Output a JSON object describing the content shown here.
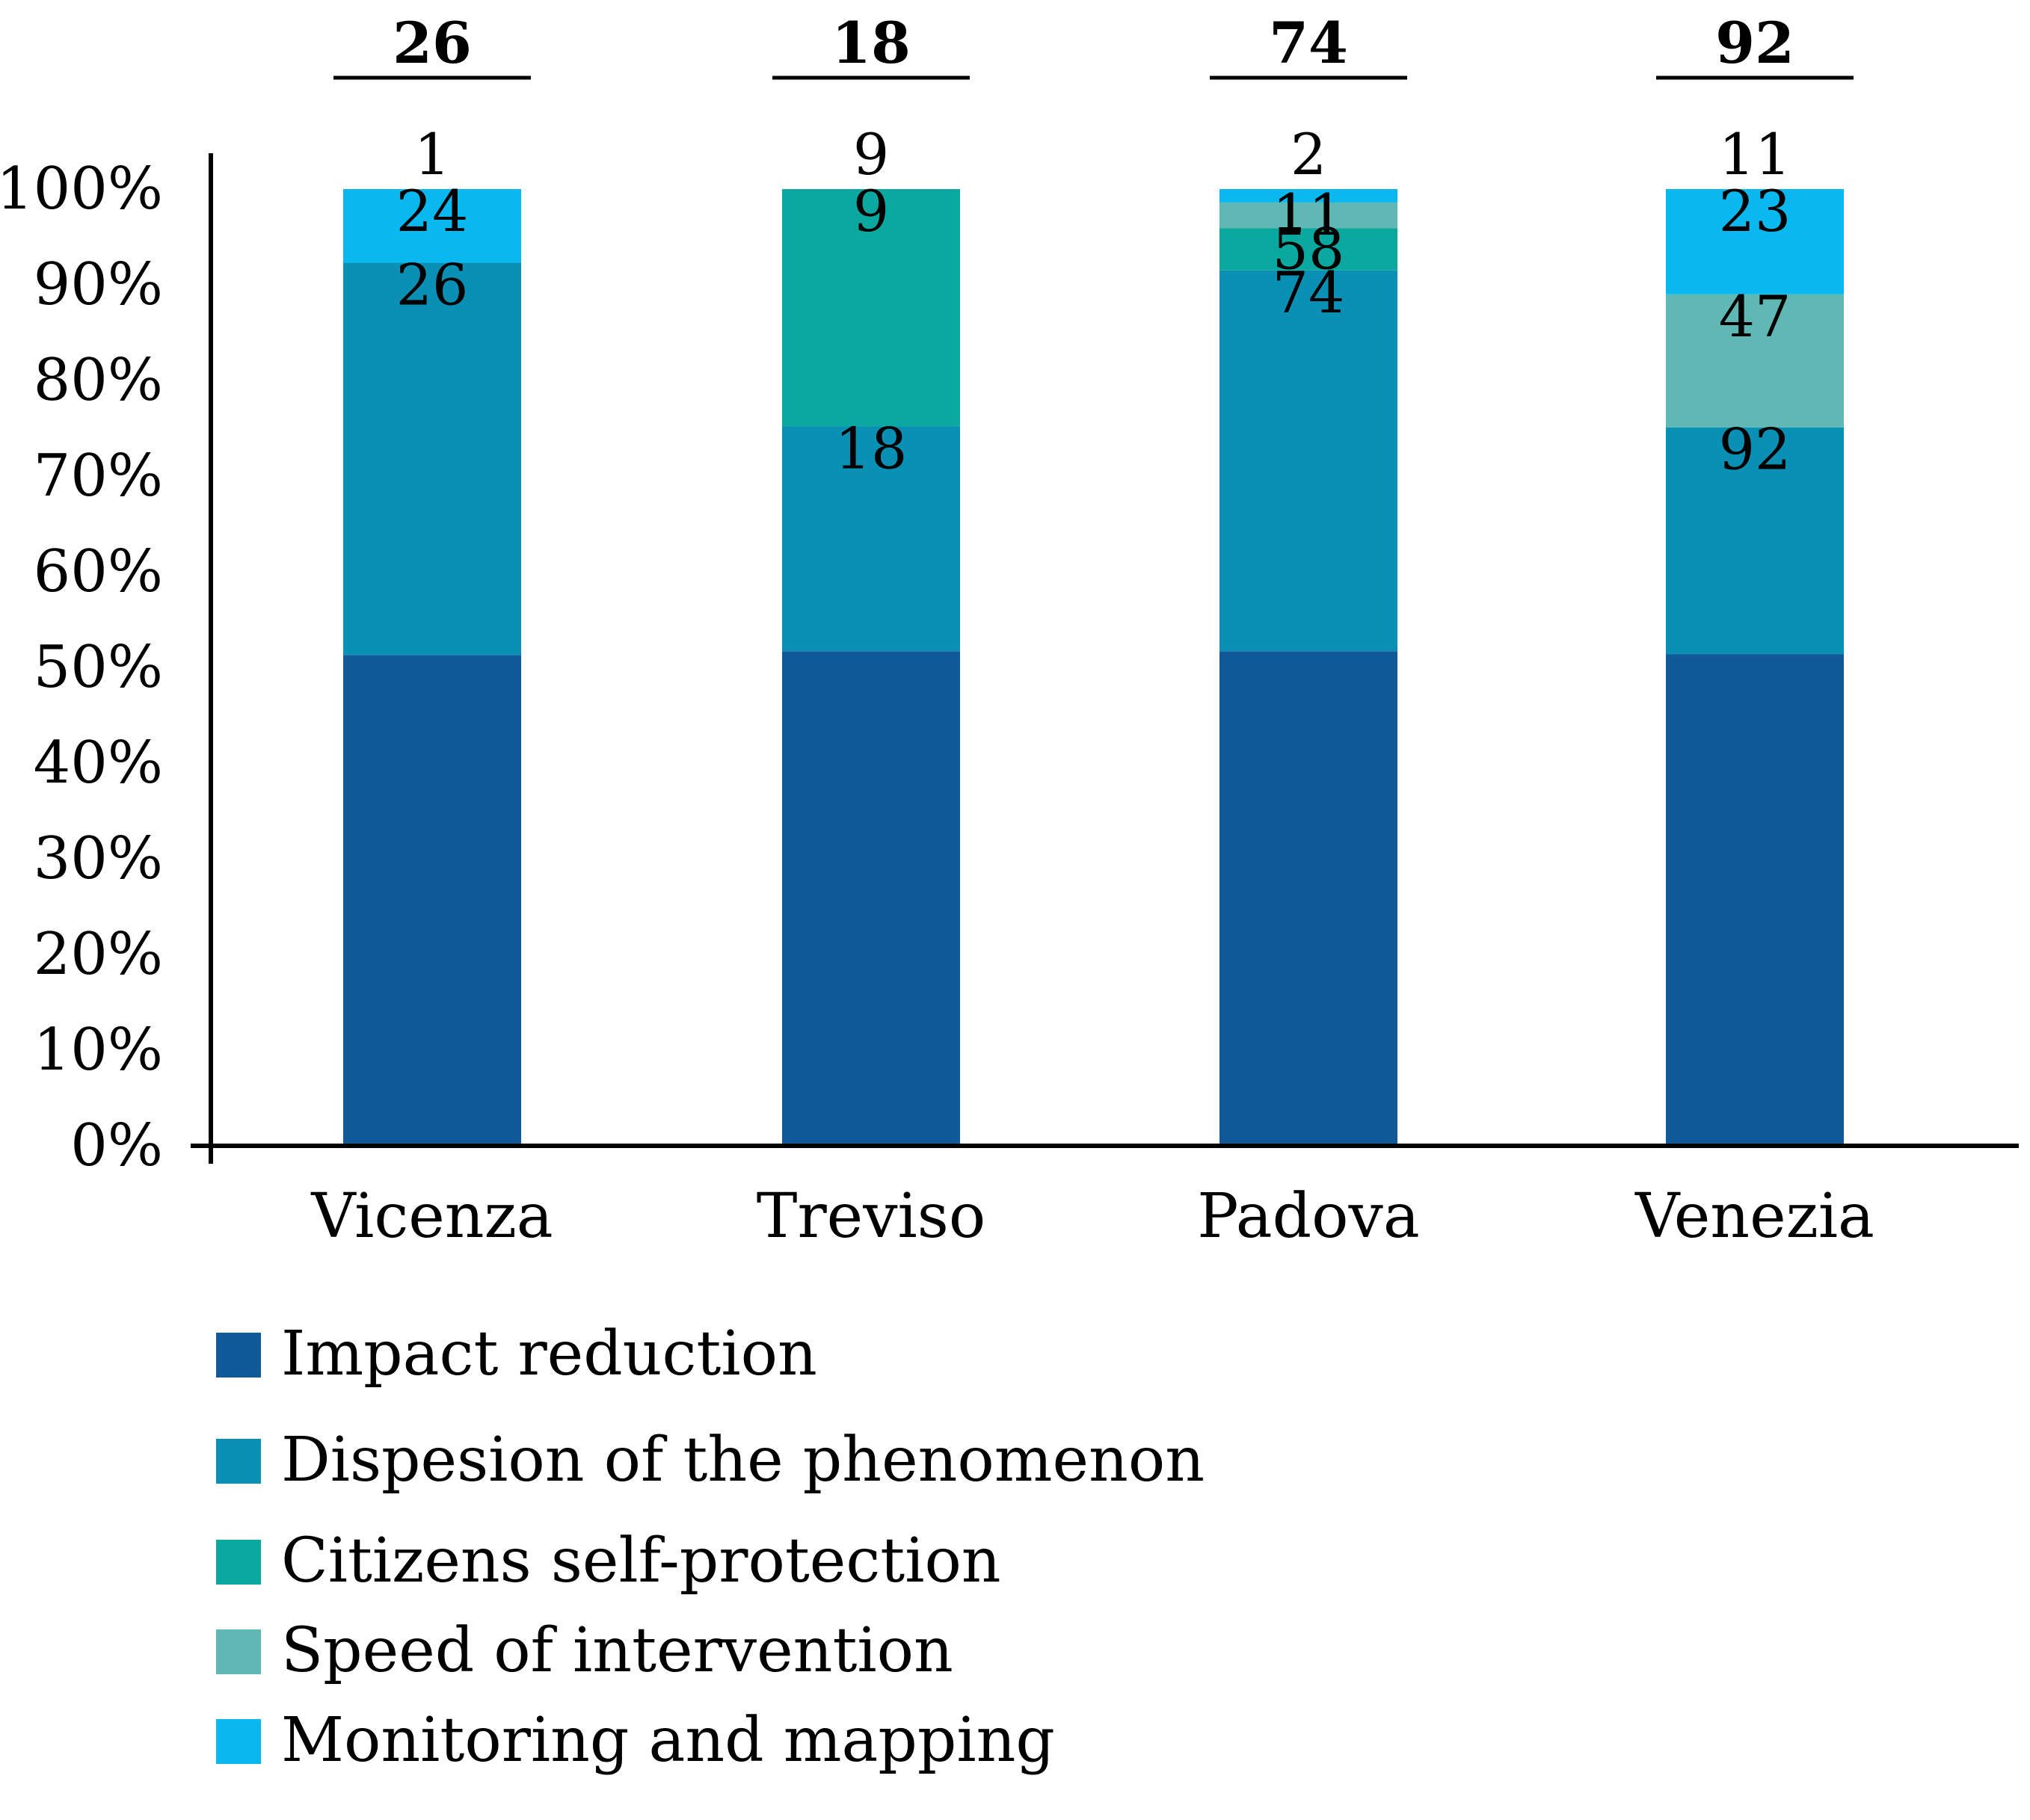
{
  "chart_data": {
    "type": "bar",
    "stacked": true,
    "percent": true,
    "categories": [
      "Vicenza",
      "Treviso",
      "Padova",
      "Venezia"
    ],
    "totals": [
      "26",
      "18",
      "74",
      "92"
    ],
    "ylim": [
      0,
      100
    ],
    "y_ticks": [
      "0%",
      "10%",
      "20%",
      "30%",
      "40%",
      "50%",
      "60%",
      "70%",
      "80%",
      "90%",
      "100%"
    ],
    "legend_position": "bottom-left",
    "series": [
      {
        "name": "Impact reduction",
        "color": "#115a99",
        "percents": [
          51.3,
          51.7,
          51.7,
          51.4
        ],
        "labels": [
          "",
          "",
          "",
          ""
        ]
      },
      {
        "name": "Dispesion of the phenomenon",
        "color": "#0b90b5",
        "percents": [
          41.0,
          23.5,
          39.8,
          23.7
        ],
        "labels": [
          "26",
          "18",
          "74",
          "92"
        ]
      },
      {
        "name": "Citizens self-protection",
        "color": "#0aa89f",
        "percents": [
          0,
          24.8,
          4.4,
          0
        ],
        "labels": [
          "",
          "9",
          "58",
          ""
        ]
      },
      {
        "name": "Speed of intervention",
        "color": "#5fb8b4",
        "percents": [
          0,
          0,
          2.7,
          13.9
        ],
        "labels": [
          "",
          "",
          "11",
          "47"
        ]
      },
      {
        "name": "Monitoring and mapping",
        "color": "#08b8ee",
        "percents": [
          7.7,
          0,
          1.4,
          11.0
        ],
        "labels": [
          "24",
          "",
          "",
          "23"
        ]
      }
    ],
    "top_labels": [
      "1",
      "9",
      "2",
      "11"
    ]
  }
}
